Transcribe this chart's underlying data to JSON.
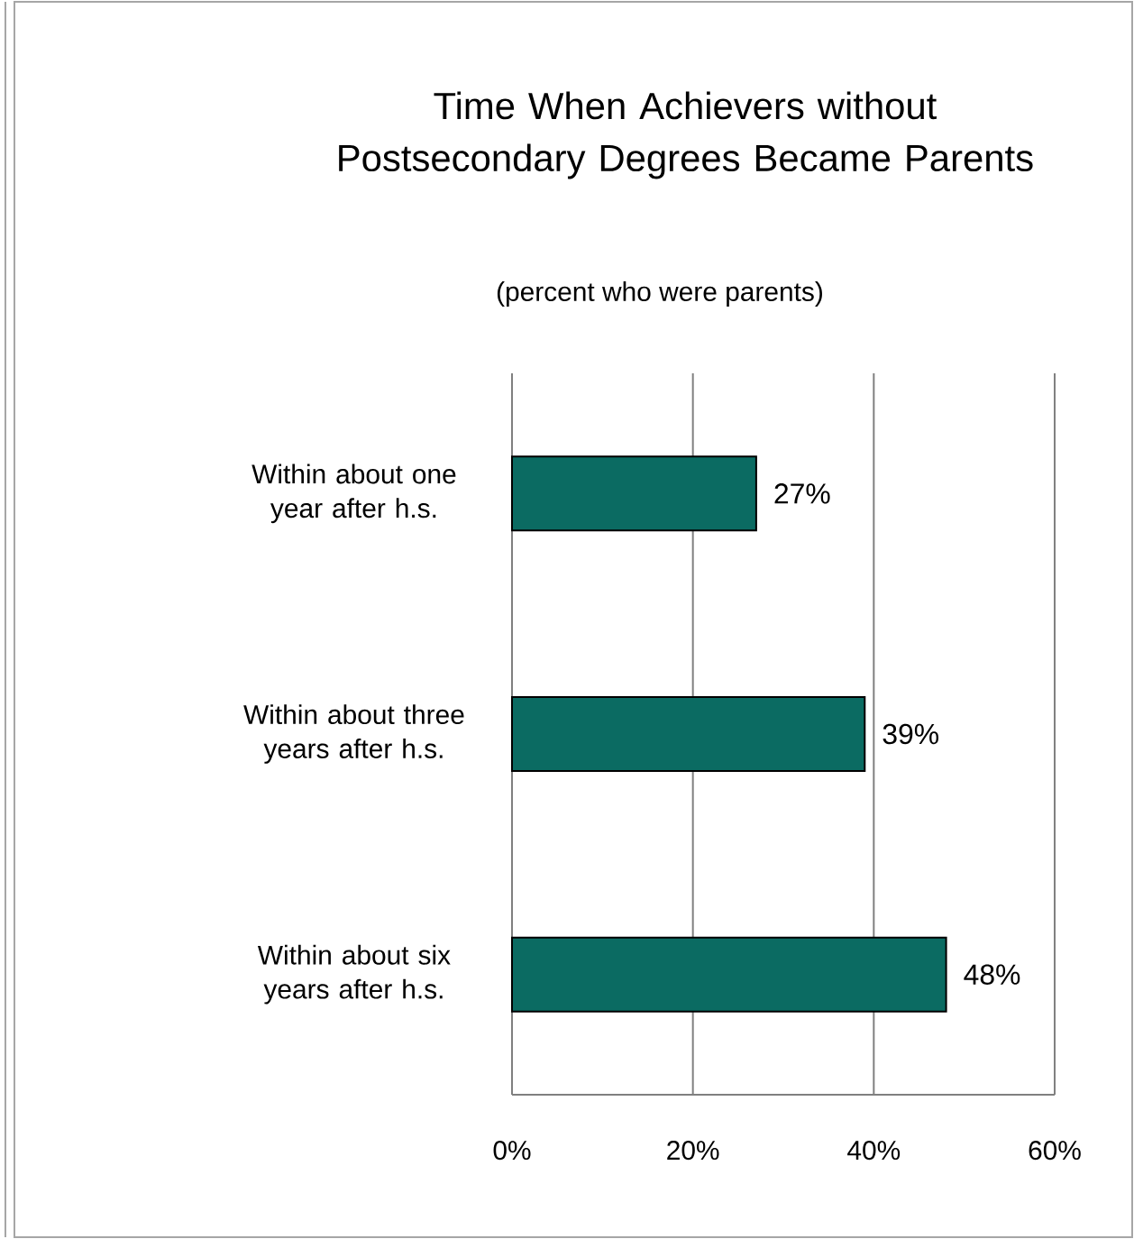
{
  "chart_data": {
    "type": "bar",
    "orientation": "horizontal",
    "title": "Time When Achievers without Postsecondary Degrees Became Parents",
    "subtitle": "(percent who were parents)",
    "categories": [
      "Within about one year after h.s.",
      "Within about three years after h.s.",
      "Within about six years after h.s."
    ],
    "values": [
      27,
      39,
      48
    ],
    "value_labels": [
      "27%",
      "39%",
      "48%"
    ],
    "color": "#0b6b62",
    "xlim": [
      0,
      60
    ],
    "xticks": [
      {
        "value": 0,
        "label": "0%"
      },
      {
        "value": 20,
        "label": "20%"
      },
      {
        "value": 40,
        "label": "40%"
      },
      {
        "value": 60,
        "label": "60%"
      }
    ],
    "grid": "x"
  }
}
